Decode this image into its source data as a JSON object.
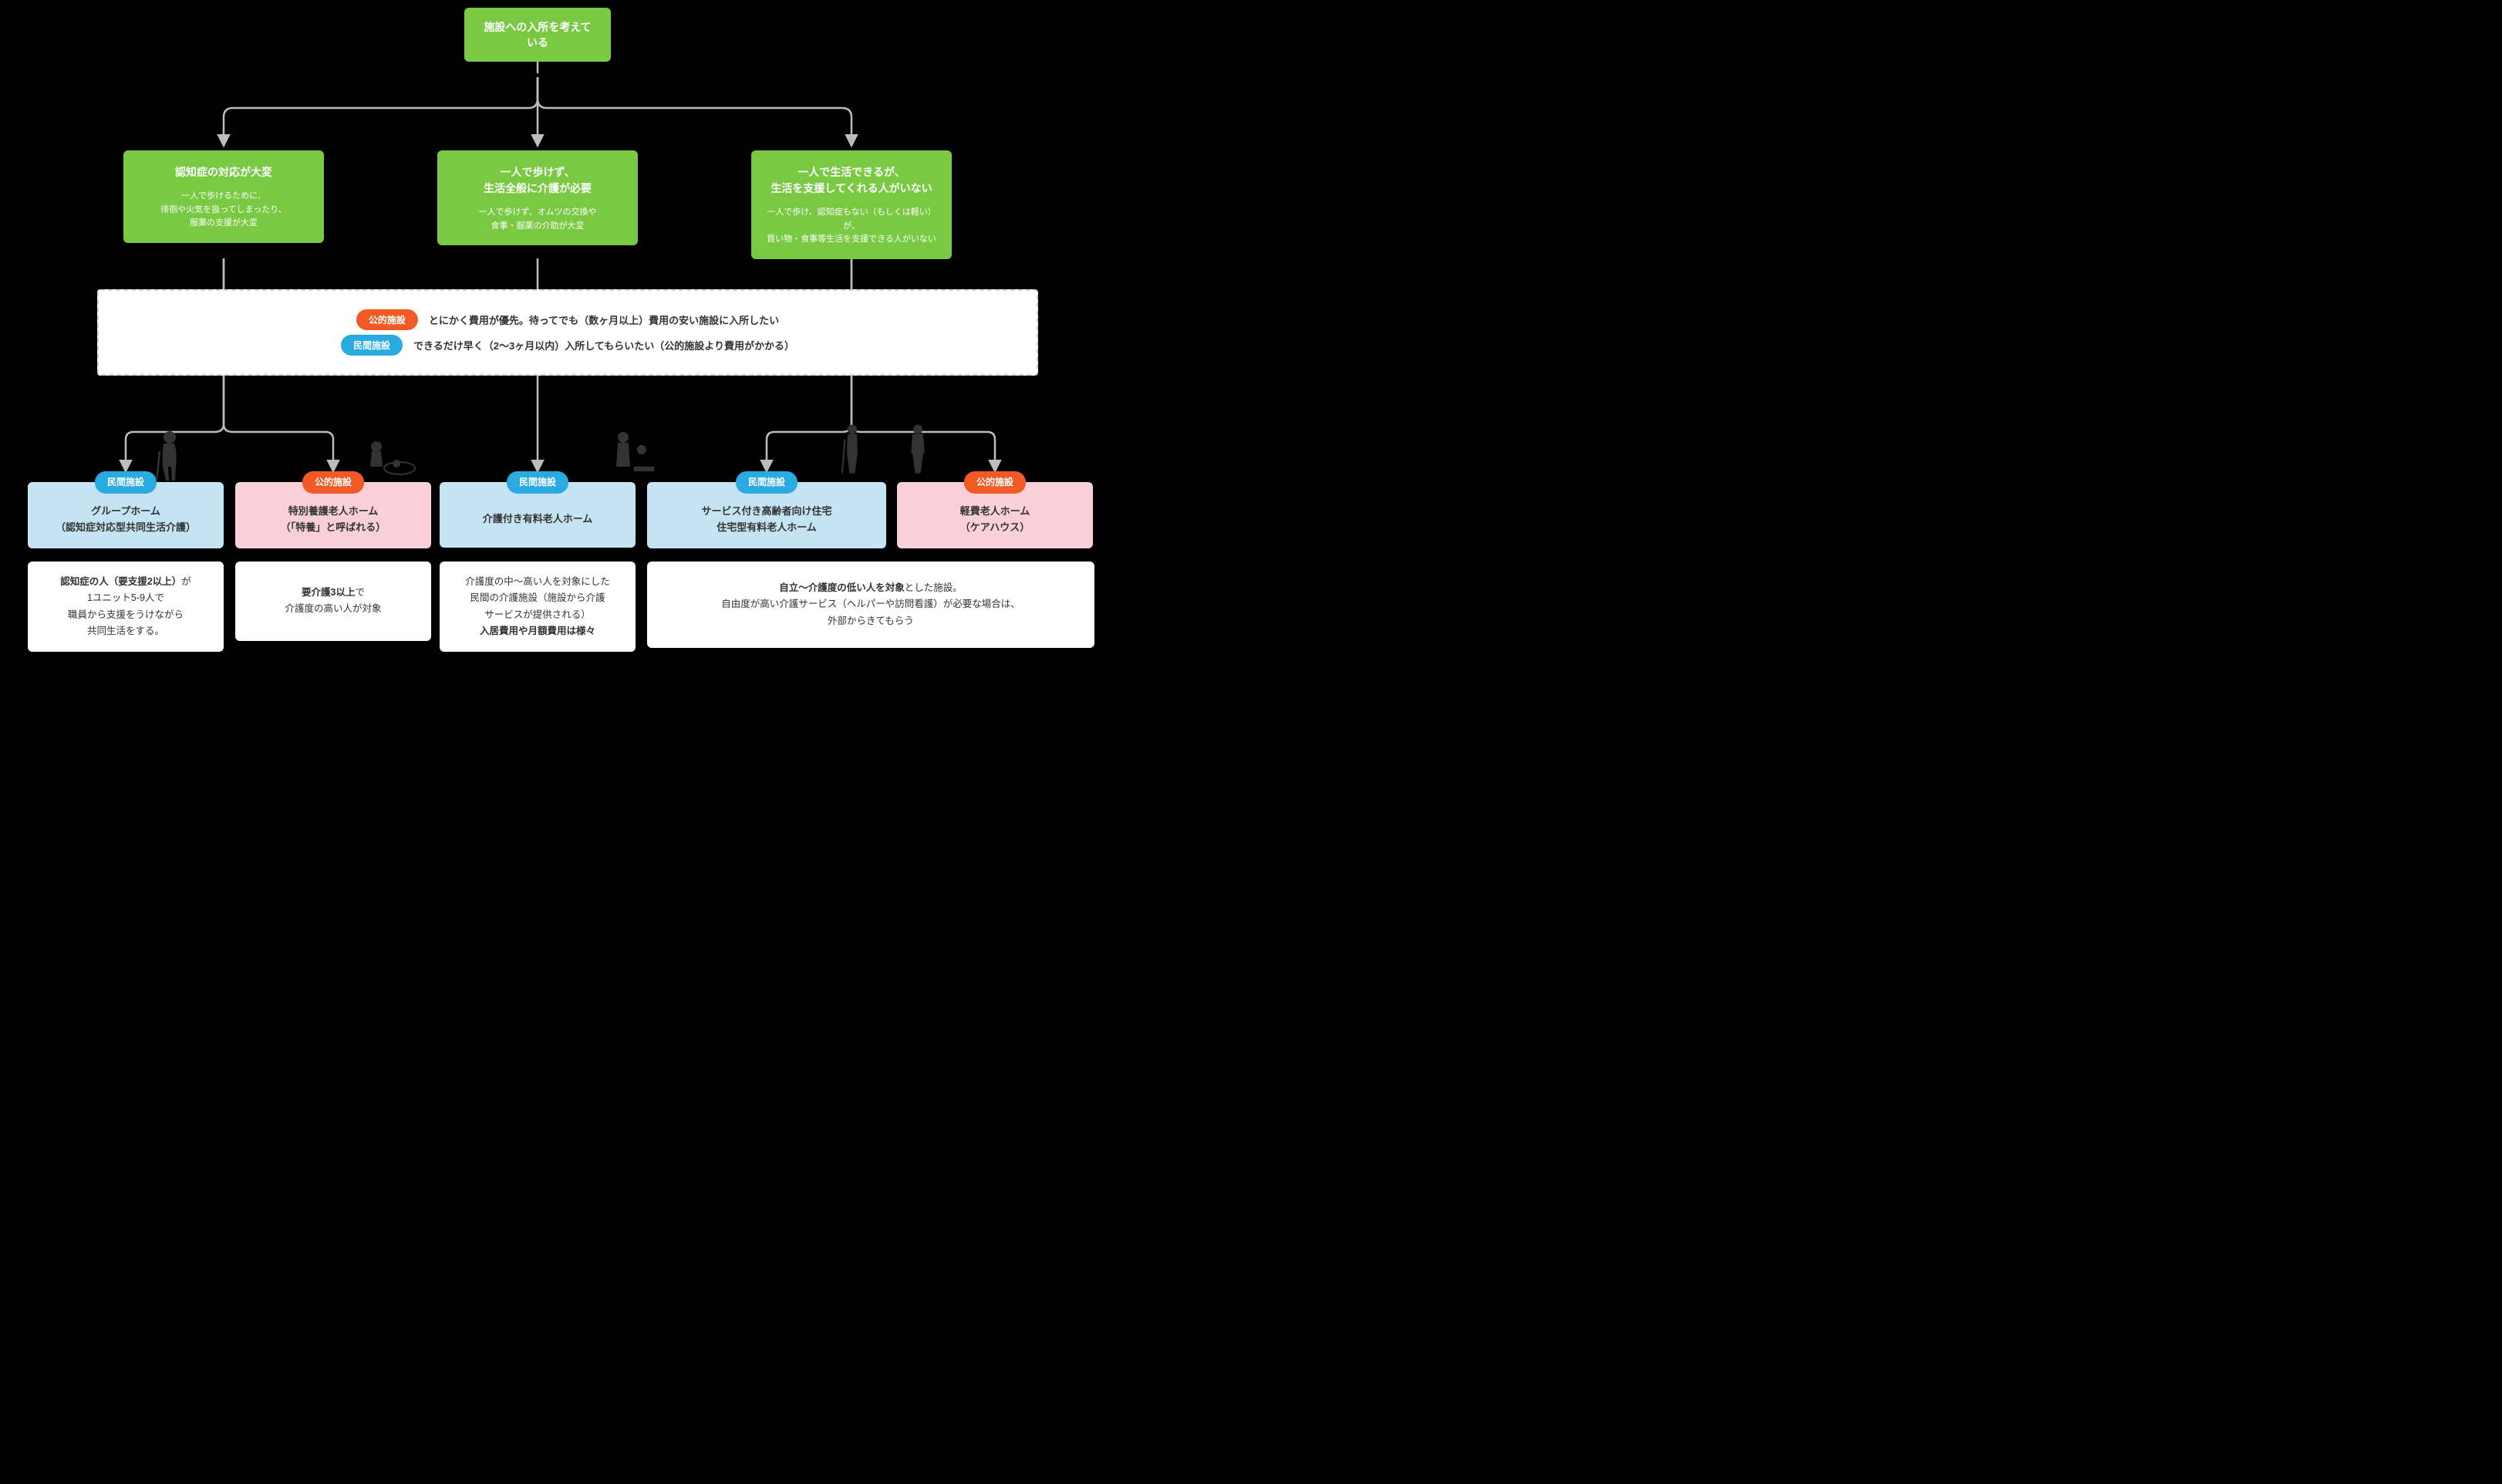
{
  "type": "flowchart",
  "background_color": "#000000",
  "node_colors": {
    "green": "#7ac943",
    "blue_card": "#c5e4f3",
    "pink_card": "#f8d0d6",
    "white": "#ffffff"
  },
  "pill_colors": {
    "public": "#f15a24",
    "private": "#29abe2"
  },
  "connector_color": "#bdbdbd",
  "root": {
    "label": "施設への入所を考えている"
  },
  "mids": [
    {
      "title": "認知症の対応が大変",
      "desc1": "一人で歩けるために、",
      "desc2": "徘徊や火気を扱ってしまったり、",
      "desc3": "服薬の支援が大変"
    },
    {
      "title1": "一人で歩けず、",
      "title2": "生活全般に介護が必要",
      "desc1": "一人で歩けず、オムツの交換や",
      "desc2": "食事・服薬の介助が大変"
    },
    {
      "title1": "一人で生活できるが、",
      "title2": "生活を支援してくれる人がいない",
      "desc1": "一人で歩け、認知症もない（もしくは軽い）が、",
      "desc2": "買い物・食事等生活を支援できる人がいない"
    }
  ],
  "legend": {
    "public_label": "公的施設",
    "public_text": "とにかく費用が優先。待ってでも（数ヶ月以上）費用の安い施設に入所したい",
    "private_label": "民間施設",
    "private_text": "できるだけ早く（2〜3ヶ月以内）入所してもらいたい（公的施設より費用がかかる）"
  },
  "facilities": [
    {
      "pill": "private",
      "pill_label": "民間施設",
      "line1": "グループホーム",
      "line2": "（認知症対応型共同生活介護）"
    },
    {
      "pill": "public",
      "pill_label": "公的施設",
      "line1": "特別養護老人ホーム",
      "line2": "（「特養」と呼ばれる）"
    },
    {
      "pill": "private",
      "pill_label": "民間施設",
      "line1": "介護付き有料老人ホーム"
    },
    {
      "pill": "private",
      "pill_label": "民間施設",
      "line1": "サービス付き高齢者向け住宅",
      "line2": "住宅型有料老人ホーム"
    },
    {
      "pill": "public",
      "pill_label": "公的施設",
      "line1": "軽費老人ホーム",
      "line2": "（ケアハウス）"
    }
  ],
  "descs": [
    {
      "html": "<b>認知症の人（要支援2以上）</b>が<br>1ユニット5-9人で<br>職員から支援をうけながら<br>共同生活をする。"
    },
    {
      "html": "<b>要介護3以上</b>で<br>介護度の高い人が対象"
    },
    {
      "html": "介護度の中〜高い人を対象にした<br>民間の介護施設（施設から介護<br>サービスが提供される）<br><b>入居費用や月額費用は様々</b>"
    },
    {
      "html": "<b>自立〜介護度の低い人を対象</b>とした施設。<br>自由度が高い介護サービス（ヘルパーや訪問看護）が必要な場合は、<br>外部からきてもらう"
    }
  ]
}
